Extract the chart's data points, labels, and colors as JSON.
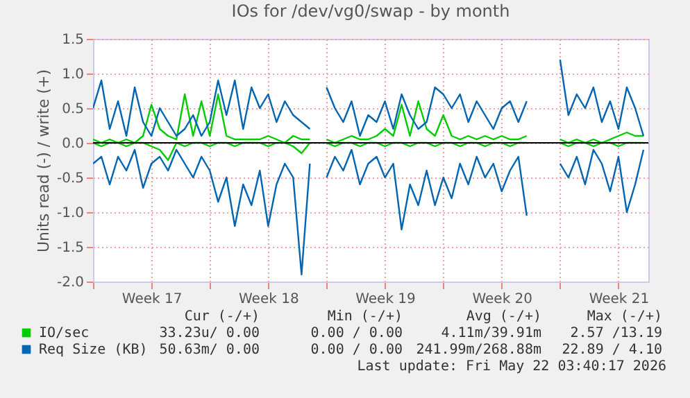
{
  "chart_data": {
    "type": "line",
    "title": "IOs for /dev/vg0/swap - by month",
    "ylabel": "Units read (-) / write (+)",
    "x": [
      "2026-04-20T00:00",
      "2026-04-20T12:00",
      "2026-04-21T00:00",
      "2026-04-21T12:00",
      "2026-04-22T00:00",
      "2026-04-22T12:00",
      "2026-04-23T00:00",
      "2026-04-23T12:00",
      "2026-04-24T00:00",
      "2026-04-24T12:00",
      "2026-04-25T00:00",
      "2026-04-25T12:00",
      "2026-04-26T00:00",
      "2026-04-26T12:00",
      "2026-04-27T00:00",
      "2026-04-27T12:00",
      "2026-04-28T00:00",
      "2026-04-28T12:00",
      "2026-04-29T00:00",
      "2026-04-29T12:00",
      "2026-04-30T00:00",
      "2026-04-30T12:00",
      "2026-05-01T00:00",
      "2026-05-01T12:00",
      "2026-05-02T00:00",
      "2026-05-02T12:00",
      "2026-05-03T00:00",
      "2026-05-03T12:00",
      "2026-05-04T00:00",
      "2026-05-04T12:00",
      "2026-05-05T00:00",
      "2026-05-05T12:00",
      "2026-05-06T00:00",
      "2026-05-06T12:00",
      "2026-05-07T00:00",
      "2026-05-07T12:00",
      "2026-05-08T00:00",
      "2026-05-08T12:00",
      "2026-05-09T00:00",
      "2026-05-09T12:00",
      "2026-05-10T00:00",
      "2026-05-10T12:00",
      "2026-05-11T00:00",
      "2026-05-11T12:00",
      "2026-05-12T00:00",
      "2026-05-12T12:00",
      "2026-05-13T00:00",
      "2026-05-13T12:00",
      "2026-05-14T00:00",
      "2026-05-14T12:00",
      "2026-05-15T00:00",
      "2026-05-15T12:00",
      "2026-05-16T00:00",
      "2026-05-16T12:00",
      "2026-05-17T00:00",
      "2026-05-17T12:00",
      "2026-05-18T00:00",
      "2026-05-18T12:00",
      "2026-05-19T00:00",
      "2026-05-19T12:00",
      "2026-05-20T00:00",
      "2026-05-20T12:00",
      "2026-05-21T00:00",
      "2026-05-21T12:00",
      "2026-05-22T00:00",
      "2026-05-22T12:00",
      "2026-05-23T00:00"
    ],
    "series": [
      {
        "name": "IO/sec",
        "color": "#00cc00",
        "values": [
          0.05,
          0.0,
          0.05,
          0.0,
          0.05,
          0.0,
          0.1,
          0.55,
          0.2,
          0.1,
          0.05,
          0.7,
          0.1,
          0.6,
          0.1,
          0.7,
          0.1,
          0.05,
          0.05,
          0.05,
          0.05,
          0.1,
          0.05,
          0.0,
          0.1,
          0.05,
          0.05,
          null,
          0.05,
          0.0,
          0.05,
          0.1,
          0.05,
          0.05,
          0.1,
          0.2,
          0.1,
          0.55,
          0.1,
          0.6,
          0.2,
          0.1,
          0.4,
          0.1,
          0.05,
          0.1,
          0.05,
          0.1,
          0.05,
          0.1,
          0.05,
          0.05,
          0.1,
          null,
          null,
          null,
          0.05,
          0.0,
          0.05,
          0.0,
          0.05,
          0.0,
          0.05,
          0.1,
          0.15,
          0.1,
          0.1
        ]
      },
      {
        "color": "#00cc00",
        "values": [
          0.0,
          -0.05,
          0.0,
          0.0,
          -0.05,
          0.0,
          0.0,
          -0.05,
          -0.1,
          -0.25,
          0.0,
          -0.05,
          0.0,
          0.0,
          -0.05,
          0.0,
          0.0,
          -0.05,
          0.0,
          0.0,
          0.0,
          -0.05,
          0.0,
          0.0,
          -0.05,
          -0.15,
          0.0,
          null,
          0.0,
          -0.05,
          0.0,
          0.0,
          -0.05,
          0.0,
          0.0,
          -0.05,
          0.0,
          0.0,
          -0.05,
          0.0,
          0.0,
          -0.05,
          0.0,
          0.0,
          -0.05,
          0.0,
          0.0,
          -0.05,
          0.0,
          0.0,
          -0.05,
          0.0,
          0.0,
          null,
          null,
          null,
          0.0,
          -0.05,
          0.0,
          0.0,
          -0.05,
          0.0,
          0.0,
          -0.05,
          0.0,
          0.0,
          0.0
        ]
      },
      {
        "name": "Req Size (KB)",
        "color": "#0066b3",
        "values": [
          0.5,
          0.9,
          0.2,
          0.6,
          0.1,
          0.8,
          0.3,
          0.1,
          0.5,
          0.3,
          0.1,
          0.2,
          0.4,
          0.1,
          0.3,
          0.9,
          0.4,
          0.9,
          0.2,
          0.8,
          0.5,
          0.7,
          0.3,
          0.6,
          0.4,
          0.3,
          0.2,
          null,
          0.8,
          0.5,
          0.3,
          0.6,
          0.1,
          0.4,
          0.3,
          0.6,
          0.2,
          0.7,
          0.4,
          0.2,
          0.3,
          0.8,
          0.7,
          0.5,
          0.7,
          0.3,
          0.6,
          0.4,
          0.2,
          0.5,
          0.6,
          0.3,
          0.6,
          null,
          null,
          null,
          1.2,
          0.4,
          0.7,
          0.5,
          0.8,
          0.3,
          0.6,
          0.2,
          0.8,
          0.5,
          0.1
        ]
      },
      {
        "color": "#0066b3",
        "values": [
          -0.3,
          -0.2,
          -0.6,
          -0.2,
          -0.4,
          -0.1,
          -0.65,
          -0.3,
          -0.2,
          -0.4,
          -0.1,
          -0.3,
          -0.5,
          -0.2,
          -0.4,
          -0.85,
          -0.5,
          -1.2,
          -0.6,
          -0.9,
          -0.4,
          -1.2,
          -0.6,
          -0.3,
          -0.5,
          -1.9,
          -0.3,
          null,
          -0.5,
          -0.2,
          -0.4,
          -0.1,
          -0.6,
          -0.3,
          -0.2,
          -0.5,
          -0.3,
          -1.25,
          -0.6,
          -0.9,
          -0.4,
          -0.9,
          -0.5,
          -0.8,
          -0.3,
          -0.6,
          -0.2,
          -0.5,
          -0.3,
          -0.7,
          -0.4,
          -0.2,
          -1.05,
          null,
          null,
          null,
          -0.3,
          -0.5,
          -0.2,
          -0.6,
          -0.1,
          -0.3,
          -0.7,
          -0.2,
          -1.0,
          -0.6,
          -0.1
        ]
      }
    ],
    "xlim": [
      "2026-04-20T00:00",
      "2026-05-23T07:00"
    ],
    "xticks": [
      {
        "value": "2026-04-20T00:00",
        "label": null
      },
      {
        "value": "2026-04-23T12:00",
        "label": "Week 17"
      },
      {
        "value": "2026-04-27T00:00",
        "label": null
      },
      {
        "value": "2026-04-30T12:00",
        "label": "Week 18"
      },
      {
        "value": "2026-05-04T00:00",
        "label": null
      },
      {
        "value": "2026-05-07T12:00",
        "label": "Week 19"
      },
      {
        "value": "2026-05-11T00:00",
        "label": null
      },
      {
        "value": "2026-05-14T12:00",
        "label": "Week 20"
      },
      {
        "value": "2026-05-18T00:00",
        "label": null
      },
      {
        "value": "2026-05-21T12:00",
        "label": "Week 21"
      }
    ],
    "ylim": [
      -2.0,
      1.5
    ],
    "yticks": [
      {
        "value": -2,
        "label": "-2.0"
      },
      {
        "value": -1.5,
        "label": "-1.5"
      },
      {
        "value": -1,
        "label": "-1.0"
      },
      {
        "value": -0.5,
        "label": "-0.5"
      },
      {
        "value": 0,
        "label": "0.0"
      },
      {
        "value": 0.5,
        "label": "0.5"
      },
      {
        "value": 1,
        "label": "1.0"
      },
      {
        "value": 1.5,
        "label": "1.5"
      }
    ],
    "ref_lines": [
      {
        "axis": "y",
        "value": 0,
        "color": "#000000"
      }
    ],
    "grid": true,
    "legend": "bottom",
    "line_style": "solid",
    "marker": "none",
    "annotations": [
      "Cur (-/+)",
      "Min (-/+)",
      "Avg (-/+)",
      "Max (-/+)",
      "33.23u/ 0.00",
      "0.00 / 0.00",
      "4.11m/39.91m",
      "2.57 /13.19",
      "50.63m/ 0.00",
      "0.00 / 0.00",
      "241.99m/268.88m",
      "22.89 / 4.10",
      "Last update: Fri May 22 03:40:17 2026"
    ]
  }
}
